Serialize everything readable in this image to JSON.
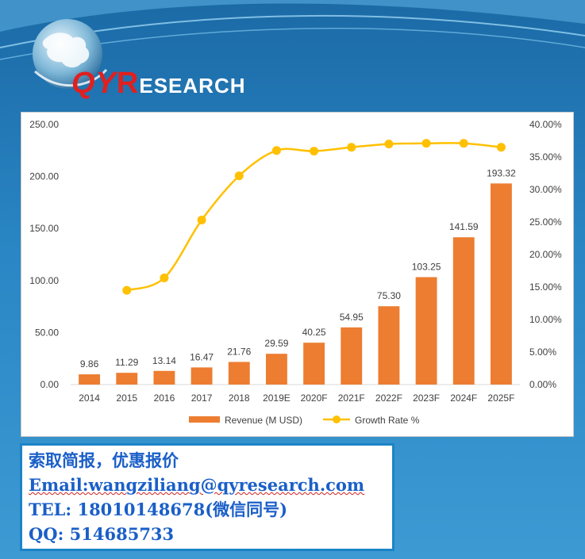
{
  "logo": {
    "qy": "QY",
    "r": "R",
    "rest": "ESEARCH"
  },
  "chart_data": {
    "type": "bar",
    "categories": [
      "2014",
      "2015",
      "2016",
      "2017",
      "2018",
      "2019E",
      "2020F",
      "2021F",
      "2022F",
      "2023F",
      "2024F",
      "2025F"
    ],
    "series": [
      {
        "name": "Revenue (M USD)",
        "type": "bar",
        "axis": "left",
        "color": "#ed7d31",
        "values": [
          9.86,
          11.29,
          13.14,
          16.47,
          21.76,
          29.59,
          40.25,
          54.95,
          75.3,
          103.25,
          141.59,
          193.32
        ],
        "labels": [
          "9.86",
          "11.29",
          "13.14",
          "16.47",
          "21.76",
          "29.59",
          "40.25",
          "54.95",
          "75.30",
          "103.25",
          "141.59",
          "193.32"
        ]
      },
      {
        "name": "Growth Rate %",
        "type": "line",
        "axis": "right",
        "color": "#ffc000",
        "values": [
          null,
          14.5,
          16.4,
          25.3,
          32.1,
          36.0,
          35.9,
          36.5,
          37.0,
          37.1,
          37.1,
          36.5
        ]
      }
    ],
    "y_left": {
      "min": 0,
      "max": 250,
      "ticks": [
        "0.00",
        "50.00",
        "100.00",
        "150.00",
        "200.00",
        "250.00"
      ]
    },
    "y_right": {
      "min": 0,
      "max": 40,
      "ticks": [
        "0.00%",
        "5.00%",
        "10.00%",
        "15.00%",
        "20.00%",
        "25.00%",
        "30.00%",
        "35.00%",
        "40.00%"
      ]
    },
    "legend_position": "bottom",
    "grid": false
  },
  "contact": {
    "line1": "索取简报，优惠报价",
    "line2": "Email:wangziliang@qyresearch.com",
    "line3": "TEL: 18010148678(微信同号)",
    "line4": "QQ: 514685733"
  }
}
